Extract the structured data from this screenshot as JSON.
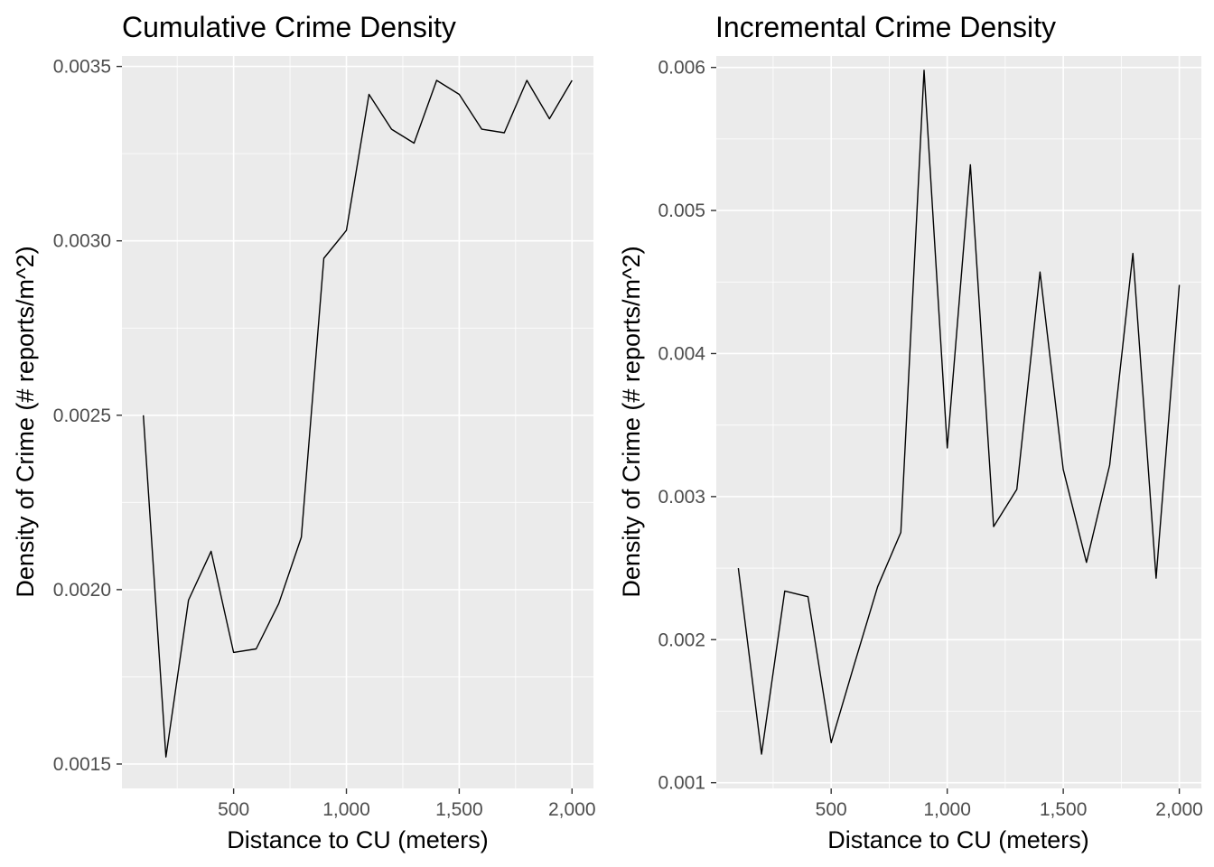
{
  "chart_data": [
    {
      "type": "line",
      "title": "Cumulative Crime Density",
      "xlabel": "Distance to CU (meters)",
      "ylabel": "Density of Crime (# reports/m^2)",
      "xlim": [
        5,
        2095
      ],
      "ylim": [
        0.00143,
        0.00353
      ],
      "x_ticks": [
        500,
        1000,
        1500,
        2000
      ],
      "x_tick_labels": [
        "500",
        "1,000",
        "1,500",
        "2,000"
      ],
      "y_ticks": [
        0.0015,
        0.002,
        0.0025,
        0.003,
        0.0035
      ],
      "y_tick_labels": [
        "0.0015",
        "0.0020",
        "0.0025",
        "0.0030",
        "0.0035"
      ],
      "grid": true,
      "series": [
        {
          "x": [
            100,
            200,
            300,
            400,
            500,
            600,
            700,
            800,
            900,
            1000,
            1100,
            1200,
            1300,
            1400,
            1500,
            1600,
            1700,
            1800,
            1900,
            2000
          ],
          "values": [
            0.0025,
            0.00152,
            0.00197,
            0.00211,
            0.00182,
            0.00183,
            0.00196,
            0.00215,
            0.00295,
            0.00303,
            0.00342,
            0.00332,
            0.00328,
            0.00346,
            0.00342,
            0.00332,
            0.00331,
            0.00346,
            0.00335,
            0.00346
          ]
        }
      ]
    },
    {
      "type": "line",
      "title": "Incremental Crime Density",
      "xlabel": "Distance to CU (meters)",
      "ylabel": "Density of Crime (# reports/m^2)",
      "xlim": [
        5,
        2095
      ],
      "ylim": [
        0.00096,
        0.00608
      ],
      "x_ticks": [
        500,
        1000,
        1500,
        2000
      ],
      "x_tick_labels": [
        "500",
        "1,000",
        "1,500",
        "2,000"
      ],
      "y_ticks": [
        0.001,
        0.002,
        0.003,
        0.004,
        0.005,
        0.006
      ],
      "y_tick_labels": [
        "0.001",
        "0.002",
        "0.003",
        "0.004",
        "0.005",
        "0.006"
      ],
      "grid": true,
      "series": [
        {
          "x": [
            100,
            200,
            300,
            400,
            500,
            600,
            700,
            800,
            900,
            1000,
            1100,
            1200,
            1300,
            1400,
            1500,
            1600,
            1700,
            1800,
            1900,
            2000
          ],
          "values": [
            0.0025,
            0.0012,
            0.00234,
            0.0023,
            0.00128,
            0.00183,
            0.00237,
            0.00275,
            0.00598,
            0.00334,
            0.00532,
            0.00279,
            0.00305,
            0.00457,
            0.00319,
            0.00254,
            0.00322,
            0.0047,
            0.00243,
            0.00448
          ]
        }
      ]
    }
  ]
}
